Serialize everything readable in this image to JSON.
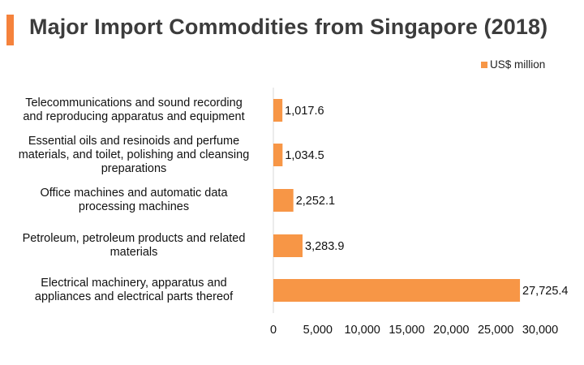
{
  "title": "Major Import Commodities from Singapore (2018)",
  "colors": {
    "accent": "#f5823c",
    "bar": "#f79646"
  },
  "chart_data": {
    "type": "bar",
    "orientation": "horizontal",
    "title": "Major Import Commodities from Singapore (2018)",
    "xlabel": "",
    "ylabel": "",
    "xlim": [
      0,
      30000
    ],
    "grid": false,
    "legend_position": "top-right",
    "series": [
      {
        "name": "US$ million",
        "color": "#f79646"
      }
    ],
    "categories": [
      "Telecommunications and sound recording and reproducing apparatus and equipment",
      "Essential oils and resinoids and perfume materials, and toilet, polishing and cleansing preparations",
      "Office machines and automatic data processing machines",
      "Petroleum, petroleum products and related materials",
      "Electrical machinery, apparatus and appliances and electrical parts thereof"
    ],
    "category_label_lines": [
      [
        "Telecommunications and sound recording",
        "and reproducing apparatus and equipment"
      ],
      [
        "Essential oils and resinoids and perfume",
        "materials, and toilet, polishing and cleansing",
        "preparations"
      ],
      [
        "Office machines and automatic data",
        "processing machines"
      ],
      [
        "Petroleum, petroleum products and related",
        "materials"
      ],
      [
        "Electrical machinery, apparatus and",
        "appliances and electrical parts thereof"
      ]
    ],
    "values": [
      1017.6,
      1034.5,
      2252.1,
      3283.9,
      27725.4
    ],
    "data_labels": [
      "1,017.6",
      "1,034.5",
      "2,252.1",
      "3,283.9",
      "27,725.4"
    ],
    "x_ticks": [
      0,
      5000,
      10000,
      15000,
      20000,
      25000,
      30000
    ],
    "x_tick_labels": [
      "0",
      "5,000",
      "10,000",
      "15,000",
      "20,000",
      "25,000",
      "30,000"
    ]
  }
}
